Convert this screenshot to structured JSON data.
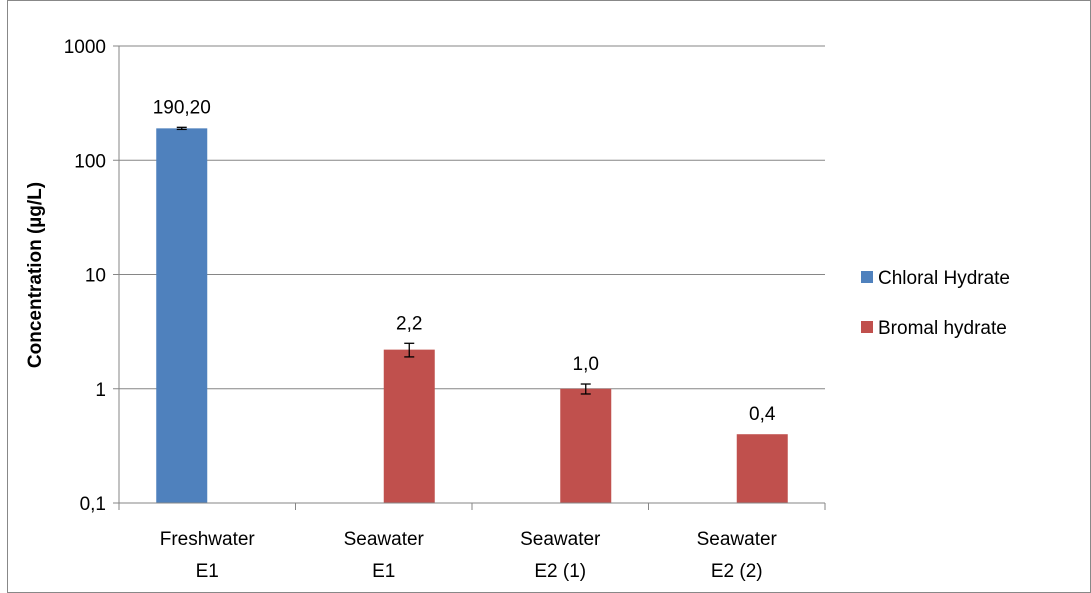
{
  "chart_data": {
    "type": "bar",
    "title": "",
    "xlabel": "",
    "ylabel": "Concentration  (µg/L)",
    "yscale": "log",
    "ylim": [
      0.1,
      1000
    ],
    "yticks": [
      {
        "value": 0.1,
        "label": "0,1"
      },
      {
        "value": 1,
        "label": "1"
      },
      {
        "value": 10,
        "label": "10"
      },
      {
        "value": 100,
        "label": "100"
      },
      {
        "value": 1000,
        "label": "1000"
      }
    ],
    "grid": true,
    "legend_position": "right",
    "categories": [
      [
        "Freshwater",
        "E1"
      ],
      [
        "Seawater",
        "E1"
      ],
      [
        "Seawater",
        "E2 (1)"
      ],
      [
        "Seawater",
        "E2 (2)"
      ]
    ],
    "series": [
      {
        "name": "Chloral Hydrate",
        "color": "#4F81BD",
        "values": [
          190.2,
          null,
          null,
          null
        ],
        "labels": [
          "190,20",
          null,
          null,
          null
        ],
        "errors": [
          4,
          null,
          null,
          null
        ]
      },
      {
        "name": "Bromal hydrate",
        "color": "#C0504D",
        "values": [
          null,
          2.2,
          1.0,
          0.4
        ],
        "labels": [
          null,
          "2,2",
          "1,0",
          "0,4"
        ],
        "errors": [
          null,
          0.3,
          0.1,
          null
        ]
      }
    ]
  }
}
